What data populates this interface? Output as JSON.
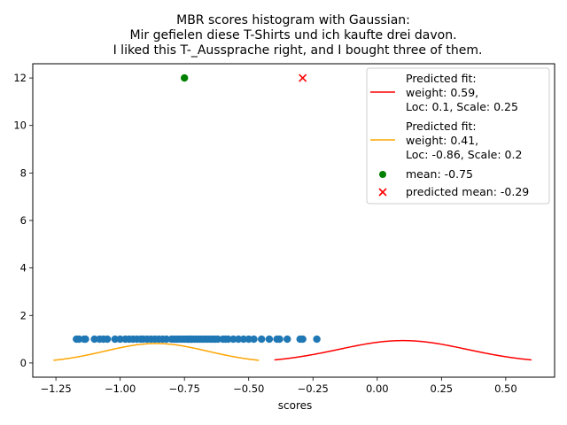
{
  "chart_data": {
    "type": "scatter",
    "title": [
      "MBR scores histogram with Gaussian:",
      "Mir gefielen diese T-Shirts und ich kaufte drei davon.",
      "I liked this T-_Aussprache right, and I bought three of them."
    ],
    "xlabel": "scores",
    "ylabel": "",
    "xlim": [
      -1.34,
      0.69
    ],
    "ylim": [
      -0.6,
      12.6
    ],
    "xticks": [
      -1.25,
      -1.0,
      -0.75,
      -0.5,
      -0.25,
      0.0,
      0.25,
      0.5
    ],
    "xtick_labels": [
      "−1.25",
      "−1.00",
      "−0.75",
      "−0.50",
      "−0.25",
      "0.00",
      "0.25",
      "0.50"
    ],
    "yticks": [
      0,
      2,
      4,
      6,
      8,
      10,
      12
    ],
    "ytick_labels": [
      "0",
      "2",
      "4",
      "6",
      "8",
      "10",
      "12"
    ],
    "grid": false,
    "legend_position": "top-right",
    "scores": {
      "color": "#1f77b4",
      "y": 1,
      "x": [
        -1.17,
        -1.16,
        -1.14,
        -1.135,
        -1.1,
        -1.08,
        -1.065,
        -1.05,
        -1.02,
        -1.0,
        -0.98,
        -0.965,
        -0.95,
        -0.935,
        -0.92,
        -0.91,
        -0.895,
        -0.88,
        -0.865,
        -0.85,
        -0.835,
        -0.82,
        -0.8,
        -0.79,
        -0.78,
        -0.77,
        -0.76,
        -0.75,
        -0.74,
        -0.735,
        -0.73,
        -0.725,
        -0.72,
        -0.71,
        -0.7,
        -0.69,
        -0.68,
        -0.67,
        -0.66,
        -0.65,
        -0.64,
        -0.63,
        -0.62,
        -0.6,
        -0.59,
        -0.58,
        -0.56,
        -0.54,
        -0.52,
        -0.5,
        -0.48,
        -0.45,
        -0.42,
        -0.39,
        -0.38,
        -0.35,
        -0.3,
        -0.29,
        -0.235
      ]
    },
    "series": [
      {
        "name": "Predicted fit:\nweight: 0.59,\nLoc: 0.1, Scale: 0.25",
        "legend_lines": [
          "Predicted fit:",
          "weight: 0.59,",
          "Loc: 0.1, Scale: 0.25"
        ],
        "color": "#ff0000",
        "x_range": [
          -0.4,
          0.6
        ],
        "loc": 0.1,
        "scale": 0.25,
        "weight": 0.59
      },
      {
        "name": "Predicted fit:\nweight: 0.41,\nLoc: -0.86, Scale: 0.2",
        "legend_lines": [
          "Predicted fit:",
          "weight: 0.41,",
          "Loc: -0.86, Scale: 0.2"
        ],
        "color": "#ffa500",
        "x_range": [
          -1.26,
          -0.46
        ],
        "loc": -0.86,
        "scale": 0.2,
        "weight": 0.41
      }
    ],
    "mean": {
      "label": "mean: -0.75",
      "x": -0.75,
      "y": 12,
      "color": "#008000"
    },
    "predicted_mean": {
      "label": "predicted mean: -0.29",
      "x": -0.29,
      "y": 12,
      "color": "#ff0000"
    }
  }
}
